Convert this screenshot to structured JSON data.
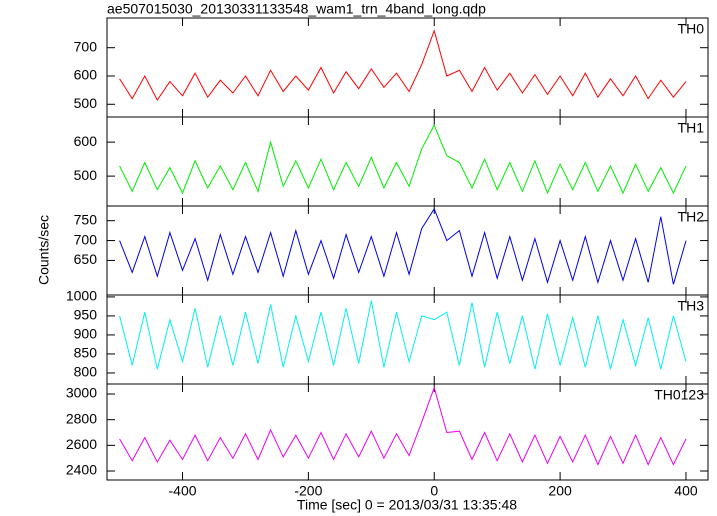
{
  "chart_data": [
    {
      "type": "line",
      "title": "ae507015030_20130331133548_wam1_trn_4band_long.qdp",
      "x": [
        -500,
        -480,
        -460,
        -440,
        -420,
        -400,
        -380,
        -360,
        -340,
        -320,
        -300,
        -280,
        -260,
        -240,
        -220,
        -200,
        -180,
        -160,
        -140,
        -120,
        -100,
        -80,
        -60,
        -40,
        -20,
        0,
        20,
        40,
        60,
        80,
        100,
        120,
        140,
        160,
        180,
        200,
        220,
        240,
        260,
        280,
        300,
        320,
        340,
        360,
        380,
        400
      ],
      "series": [
        {
          "name": "TH0",
          "color": "#ff0000",
          "values": [
            590,
            520,
            600,
            515,
            580,
            530,
            610,
            525,
            585,
            540,
            600,
            530,
            620,
            545,
            600,
            550,
            630,
            540,
            615,
            555,
            625,
            560,
            610,
            545,
            640,
            760,
            600,
            620,
            545,
            630,
            550,
            610,
            540,
            605,
            535,
            600,
            530,
            610,
            525,
            590,
            530,
            600,
            520,
            585,
            525,
            580
          ]
        }
      ],
      "xlim": [
        -520,
        435
      ],
      "xticks": [
        -400,
        -200,
        0,
        200,
        400
      ],
      "ylim": [
        455,
        805
      ],
      "yticks": [
        500,
        600,
        700
      ]
    },
    {
      "type": "line",
      "x": [
        -500,
        -480,
        -460,
        -440,
        -420,
        -400,
        -380,
        -360,
        -340,
        -320,
        -300,
        -280,
        -260,
        -240,
        -220,
        -200,
        -180,
        -160,
        -140,
        -120,
        -100,
        -80,
        -60,
        -40,
        -20,
        0,
        20,
        40,
        60,
        80,
        100,
        120,
        140,
        160,
        180,
        200,
        220,
        240,
        260,
        280,
        300,
        320,
        340,
        360,
        380,
        400
      ],
      "series": [
        {
          "name": "TH1",
          "color": "#00ee00",
          "values": [
            530,
            455,
            540,
            460,
            525,
            450,
            545,
            465,
            530,
            460,
            540,
            455,
            600,
            470,
            545,
            465,
            550,
            460,
            540,
            470,
            555,
            465,
            540,
            470,
            580,
            650,
            560,
            540,
            465,
            550,
            460,
            540,
            455,
            545,
            450,
            535,
            460,
            540,
            455,
            530,
            450,
            535,
            455,
            525,
            450,
            530
          ]
        }
      ],
      "xlim": [
        -520,
        435
      ],
      "xticks": [
        -400,
        -200,
        0,
        200,
        400
      ],
      "ylim": [
        412,
        674
      ],
      "yticks": [
        500,
        600
      ]
    },
    {
      "type": "line",
      "ylabel": "Counts/sec",
      "x": [
        -500,
        -480,
        -460,
        -440,
        -420,
        -400,
        -380,
        -360,
        -340,
        -320,
        -300,
        -280,
        -260,
        -240,
        -220,
        -200,
        -180,
        -160,
        -140,
        -120,
        -100,
        -80,
        -60,
        -40,
        -20,
        0,
        20,
        40,
        60,
        80,
        100,
        120,
        140,
        160,
        180,
        200,
        220,
        240,
        260,
        280,
        300,
        320,
        340,
        360,
        380,
        400
      ],
      "series": [
        {
          "name": "TH2",
          "color": "#0000ee",
          "values": [
            700,
            620,
            710,
            610,
            720,
            625,
            705,
            600,
            715,
            615,
            710,
            620,
            720,
            610,
            725,
            615,
            700,
            605,
            715,
            620,
            710,
            610,
            720,
            615,
            730,
            780,
            700,
            725,
            610,
            720,
            605,
            710,
            600,
            705,
            595,
            700,
            600,
            710,
            595,
            700,
            600,
            705,
            595,
            760,
            590,
            700
          ]
        }
      ],
      "xlim": [
        -520,
        435
      ],
      "xticks": [
        -400,
        -200,
        0,
        200,
        400
      ],
      "ylim": [
        563,
        787
      ],
      "yticks": [
        650,
        700,
        750
      ]
    },
    {
      "type": "line",
      "x": [
        -500,
        -480,
        -460,
        -440,
        -420,
        -400,
        -380,
        -360,
        -340,
        -320,
        -300,
        -280,
        -260,
        -240,
        -220,
        -200,
        -180,
        -160,
        -140,
        -120,
        -100,
        -80,
        -60,
        -40,
        -20,
        0,
        20,
        40,
        60,
        80,
        100,
        120,
        140,
        160,
        180,
        200,
        220,
        240,
        260,
        280,
        300,
        320,
        340,
        360,
        380,
        400
      ],
      "series": [
        {
          "name": "TH3",
          "color": "#00eeee",
          "values": [
            950,
            820,
            960,
            810,
            940,
            830,
            970,
            815,
            950,
            820,
            960,
            825,
            980,
            815,
            950,
            830,
            960,
            820,
            970,
            825,
            990,
            815,
            960,
            830,
            950,
            940,
            960,
            820,
            985,
            815,
            960,
            825,
            950,
            810,
            955,
            820,
            945,
            815,
            950,
            810,
            940,
            820,
            945,
            810,
            950,
            830
          ]
        }
      ],
      "xlim": [
        -520,
        435
      ],
      "xticks": [
        -400,
        -200,
        0,
        200,
        400
      ],
      "ylim": [
        771,
        1005
      ],
      "yticks": [
        800,
        850,
        900,
        950,
        1000
      ]
    },
    {
      "type": "line",
      "xlabel": "Time [sec] 0 = 2013/03/31 13:35:48",
      "x": [
        -500,
        -480,
        -460,
        -440,
        -420,
        -400,
        -380,
        -360,
        -340,
        -320,
        -300,
        -280,
        -260,
        -240,
        -220,
        -200,
        -180,
        -160,
        -140,
        -120,
        -100,
        -80,
        -60,
        -40,
        -20,
        0,
        20,
        40,
        60,
        80,
        100,
        120,
        140,
        160,
        180,
        200,
        220,
        240,
        260,
        280,
        300,
        320,
        340,
        360,
        380,
        400
      ],
      "series": [
        {
          "name": "TH0123",
          "color": "#ee00ee",
          "values": [
            2650,
            2480,
            2660,
            2470,
            2640,
            2490,
            2680,
            2480,
            2660,
            2500,
            2690,
            2490,
            2720,
            2510,
            2680,
            2500,
            2700,
            2490,
            2690,
            2510,
            2710,
            2500,
            2690,
            2520,
            2780,
            3050,
            2700,
            2710,
            2490,
            2700,
            2480,
            2690,
            2470,
            2680,
            2460,
            2670,
            2470,
            2680,
            2450,
            2670,
            2460,
            2680,
            2450,
            2660,
            2450,
            2650
          ]
        }
      ],
      "xlim": [
        -520,
        435
      ],
      "xticks": [
        -400,
        -200,
        0,
        200,
        400
      ],
      "ylim": [
        2330,
        3078
      ],
      "yticks": [
        2400,
        2600,
        2800,
        3000
      ]
    }
  ]
}
